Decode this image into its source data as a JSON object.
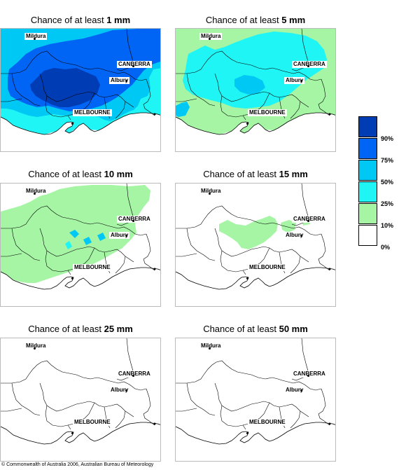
{
  "colors": {
    "c10": "#a5f5a5",
    "c25": "#20f5f5",
    "c50": "#00c8f5",
    "c75": "#0064f5",
    "c90": "#003cb4",
    "border": "#000000"
  },
  "cities": {
    "mildura": "Mildura",
    "canberra": "CANBERRA",
    "albury": "Albury",
    "melbourne": "MELBOURNE"
  },
  "panels": [
    {
      "prefix": "Chance of at least ",
      "amount": "1 mm"
    },
    {
      "prefix": "Chance of at least ",
      "amount": "5 mm"
    },
    {
      "prefix": "Chance of at least ",
      "amount": "10 mm"
    },
    {
      "prefix": "Chance of at least ",
      "amount": "15 mm"
    },
    {
      "prefix": "Chance of at least ",
      "amount": "25 mm"
    },
    {
      "prefix": "Chance of at least ",
      "amount": "50 mm"
    }
  ],
  "legend": {
    "labels": [
      "90%",
      "75%",
      "50%",
      "25%",
      "10%",
      "0%"
    ]
  },
  "footer": "© Commonwealth of Australia 2006, Australian Bureau of Meteorology"
}
